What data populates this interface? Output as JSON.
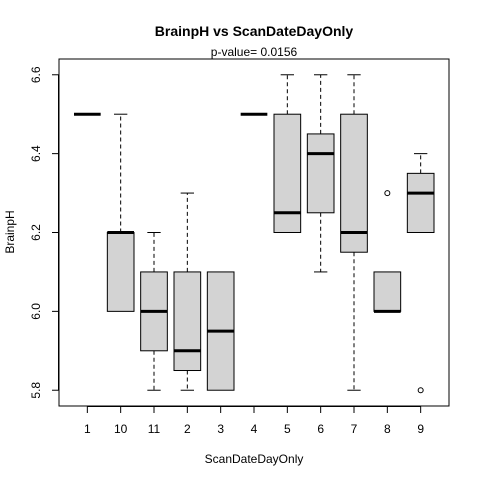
{
  "chart_data": {
    "type": "boxplot",
    "title": "BrainpH  vs  ScanDateDayOnly",
    "subtitle": "p-value= 0.0156",
    "xlabel": "ScanDateDayOnly",
    "ylabel": "BrainpH",
    "categories": [
      "1",
      "10",
      "11",
      "2",
      "3",
      "4",
      "5",
      "6",
      "7",
      "8",
      "9"
    ],
    "yticks": [
      "5.8",
      "6.0",
      "6.2",
      "6.4",
      "6.6"
    ],
    "ylim": [
      5.76,
      6.64
    ],
    "box_fill": "#d3d3d3",
    "boxes": [
      {
        "min": 6.5,
        "q1": 6.5,
        "median": 6.5,
        "q3": 6.5,
        "max": 6.5,
        "outliers": []
      },
      {
        "min": 6.0,
        "q1": 6.0,
        "median": 6.2,
        "q3": 6.2,
        "max": 6.5,
        "outliers": []
      },
      {
        "min": 5.8,
        "q1": 5.9,
        "median": 6.0,
        "q3": 6.1,
        "max": 6.2,
        "outliers": []
      },
      {
        "min": 5.8,
        "q1": 5.85,
        "median": 5.9,
        "q3": 6.1,
        "max": 6.3,
        "outliers": []
      },
      {
        "min": 5.8,
        "q1": 5.8,
        "median": 5.95,
        "q3": 6.1,
        "max": 6.1,
        "outliers": []
      },
      {
        "min": 6.5,
        "q1": 6.5,
        "median": 6.5,
        "q3": 6.5,
        "max": 6.5,
        "outliers": []
      },
      {
        "min": 6.2,
        "q1": 6.2,
        "median": 6.25,
        "q3": 6.5,
        "max": 6.6,
        "outliers": []
      },
      {
        "min": 6.1,
        "q1": 6.25,
        "median": 6.4,
        "q3": 6.45,
        "max": 6.6,
        "outliers": []
      },
      {
        "min": 5.8,
        "q1": 6.15,
        "median": 6.2,
        "q3": 6.5,
        "max": 6.6,
        "outliers": []
      },
      {
        "min": 6.0,
        "q1": 6.0,
        "median": 6.0,
        "q3": 6.1,
        "max": 6.1,
        "outliers": [
          6.3
        ]
      },
      {
        "min": 6.2,
        "q1": 6.2,
        "median": 6.3,
        "q3": 6.35,
        "max": 6.4,
        "outliers": [
          5.8
        ]
      }
    ]
  }
}
